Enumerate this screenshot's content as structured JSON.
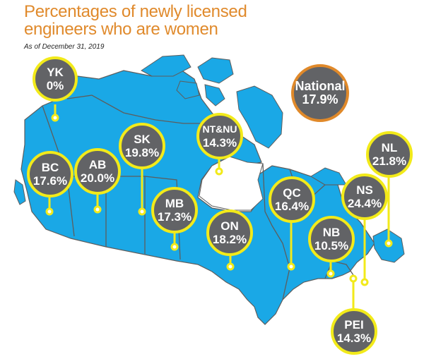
{
  "title": "Percentages of newly licensed engineers who are women",
  "subtitle": "As of December 31, 2019",
  "colors": {
    "title": "#e08a2c",
    "land": "#1aa8e6",
    "border": "#5d5d5d",
    "bubble": "#626366",
    "ring": "#f2ea1a",
    "national_ring": "#e0892a"
  },
  "national": {
    "label": "National",
    "value": "17.9%"
  },
  "regions": [
    {
      "code": "YK",
      "value": "0%"
    },
    {
      "code": "BC",
      "value": "17.6%"
    },
    {
      "code": "AB",
      "value": "20.0%"
    },
    {
      "code": "SK",
      "value": "19.8%"
    },
    {
      "code": "MB",
      "value": "17.3%"
    },
    {
      "code": "NT&NU",
      "value": "14.3%"
    },
    {
      "code": "ON",
      "value": "18.2%"
    },
    {
      "code": "QC",
      "value": "16.4%"
    },
    {
      "code": "NB",
      "value": "10.5%"
    },
    {
      "code": "NS",
      "value": "24.4%"
    },
    {
      "code": "NL",
      "value": "21.8%"
    },
    {
      "code": "PEI",
      "value": "14.3%"
    }
  ]
}
